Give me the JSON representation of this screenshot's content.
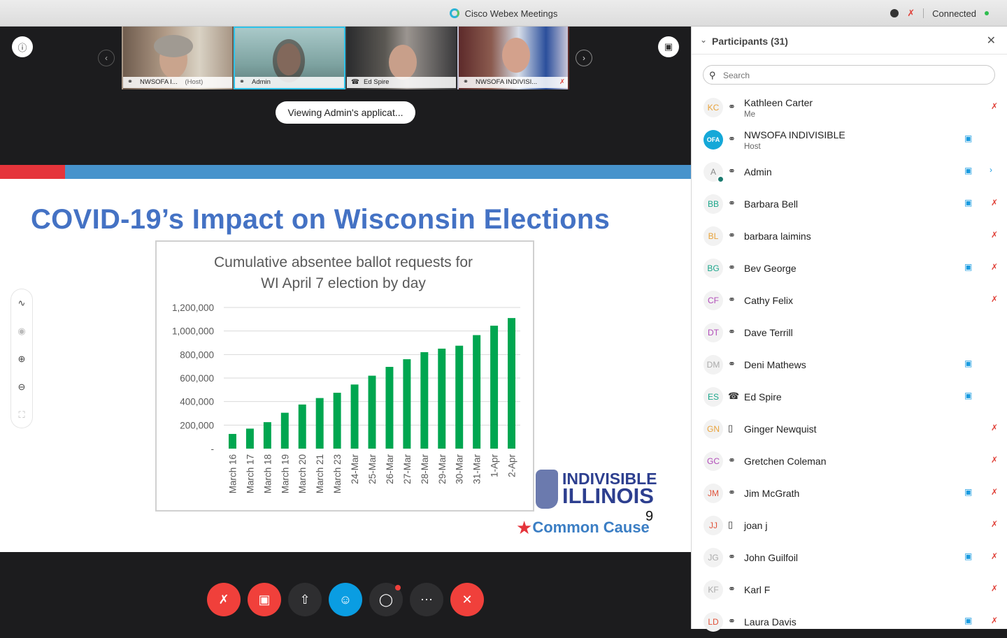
{
  "titlebar": {
    "title": "Cisco Webex Meetings",
    "status": "Connected"
  },
  "thumbnails": [
    {
      "name": "NWSOFA I...",
      "tag": "(Host)",
      "muted": false
    },
    {
      "name": "Admin",
      "tag": "",
      "muted": false
    },
    {
      "name": "Ed Spire",
      "tag": "",
      "muted": false
    },
    {
      "name": "NWSOFA INDIVISI...",
      "tag": "",
      "muted": true
    }
  ],
  "viewing_label": "Viewing Admin's applicat...",
  "slide": {
    "title": "COVID-19’s Impact on Wisconsin Elections",
    "page_number": "9",
    "brand_line1": "INDIVISIBLE",
    "brand_line2": "ILLINOIS",
    "cc_name": "Common Cause"
  },
  "chart_data": {
    "type": "bar",
    "title": "Cumulative absentee ballot requests for WI April 7 election by day",
    "title_lines": [
      "Cumulative absentee ballot requests for",
      "WI April 7 election by day"
    ],
    "categories": [
      "March 16",
      "March 17",
      "March 18",
      "March 19",
      "March 20",
      "March 21",
      "March 23",
      "24-Mar",
      "25-Mar",
      "26-Mar",
      "27-Mar",
      "28-Mar",
      "29-Mar",
      "30-Mar",
      "31-Mar",
      "1-Apr",
      "2-Apr"
    ],
    "values": [
      125000,
      170000,
      225000,
      305000,
      375000,
      430000,
      475000,
      545000,
      620000,
      695000,
      760000,
      820000,
      850000,
      875000,
      965000,
      1045000,
      1110000
    ],
    "ylim": [
      0,
      1200000
    ],
    "yticks": [
      "-",
      "200,000",
      "400,000",
      "600,000",
      "800,000",
      "1,000,000",
      "1,200,000"
    ],
    "color": "#00a650",
    "grid": true
  },
  "participants": {
    "header": "Participants (31)",
    "search_placeholder": "Search",
    "list": [
      {
        "initials": "KC",
        "color": "#e8a23a",
        "name": "Kathleen Carter",
        "role": "Me",
        "device": "headset",
        "video": false,
        "muted": true
      },
      {
        "initials": "OFA",
        "color": "#ffffff",
        "name": "NWSOFA INDIVISIBLE",
        "role": "Host",
        "device": "headset",
        "video": true,
        "muted": false,
        "ofa": true
      },
      {
        "initials": "A",
        "color": "#888888",
        "name": "Admin",
        "role": "",
        "device": "headset",
        "video": true,
        "muted": false,
        "presence": true,
        "more": true
      },
      {
        "initials": "BB",
        "color": "#1aa68a",
        "name": "Barbara Bell",
        "role": "",
        "device": "headset",
        "video": true,
        "muted": true
      },
      {
        "initials": "BL",
        "color": "#e8a23a",
        "name": "barbara laimins",
        "role": "",
        "device": "headset",
        "video": false,
        "muted": true
      },
      {
        "initials": "BG",
        "color": "#1aa68a",
        "name": "Bev George",
        "role": "",
        "device": "headset",
        "video": true,
        "muted": true
      },
      {
        "initials": "CF",
        "color": "#b04ab8",
        "name": "Cathy Felix",
        "role": "",
        "device": "headset",
        "video": false,
        "muted": true
      },
      {
        "initials": "DT",
        "color": "#b04ab8",
        "name": "Dave Terrill",
        "role": "",
        "device": "headset",
        "video": false,
        "muted": false
      },
      {
        "initials": "DM",
        "color": "#aaaaaa",
        "name": "Deni Mathews",
        "role": "",
        "device": "headset",
        "video": true,
        "muted": false
      },
      {
        "initials": "ES",
        "color": "#1aa68a",
        "name": "Ed Spire",
        "role": "",
        "device": "phone",
        "video": true,
        "muted": false
      },
      {
        "initials": "GN",
        "color": "#e8a23a",
        "name": "Ginger Newquist",
        "role": "",
        "device": "mobile",
        "video": false,
        "muted": true
      },
      {
        "initials": "GC",
        "color": "#b04ab8",
        "name": "Gretchen Coleman",
        "role": "",
        "device": "headset",
        "video": false,
        "muted": true
      },
      {
        "initials": "JM",
        "color": "#e0523a",
        "name": "Jim McGrath",
        "role": "",
        "device": "headset",
        "video": true,
        "muted": true
      },
      {
        "initials": "JJ",
        "color": "#e0523a",
        "name": "joan j",
        "role": "",
        "device": "mobile",
        "video": false,
        "muted": true
      },
      {
        "initials": "JG",
        "color": "#aaaaaa",
        "name": "John Guilfoil",
        "role": "",
        "device": "headset",
        "video": true,
        "muted": true
      },
      {
        "initials": "KF",
        "color": "#aaaaaa",
        "name": "Karl F",
        "role": "",
        "device": "headset",
        "video": false,
        "muted": true
      },
      {
        "initials": "LD",
        "color": "#e0523a",
        "name": "Laura Davis",
        "role": "",
        "device": "headset",
        "video": true,
        "muted": true
      }
    ]
  },
  "icons": {
    "info": "info-icon",
    "layout": "layout-icon",
    "prev": "chevron-left-icon",
    "next": "chevron-right-icon",
    "headset": "headset-icon",
    "phone": "phone-icon",
    "mobile": "mobile-icon",
    "video": "video-icon",
    "mic_muted": "mic-muted-icon"
  }
}
